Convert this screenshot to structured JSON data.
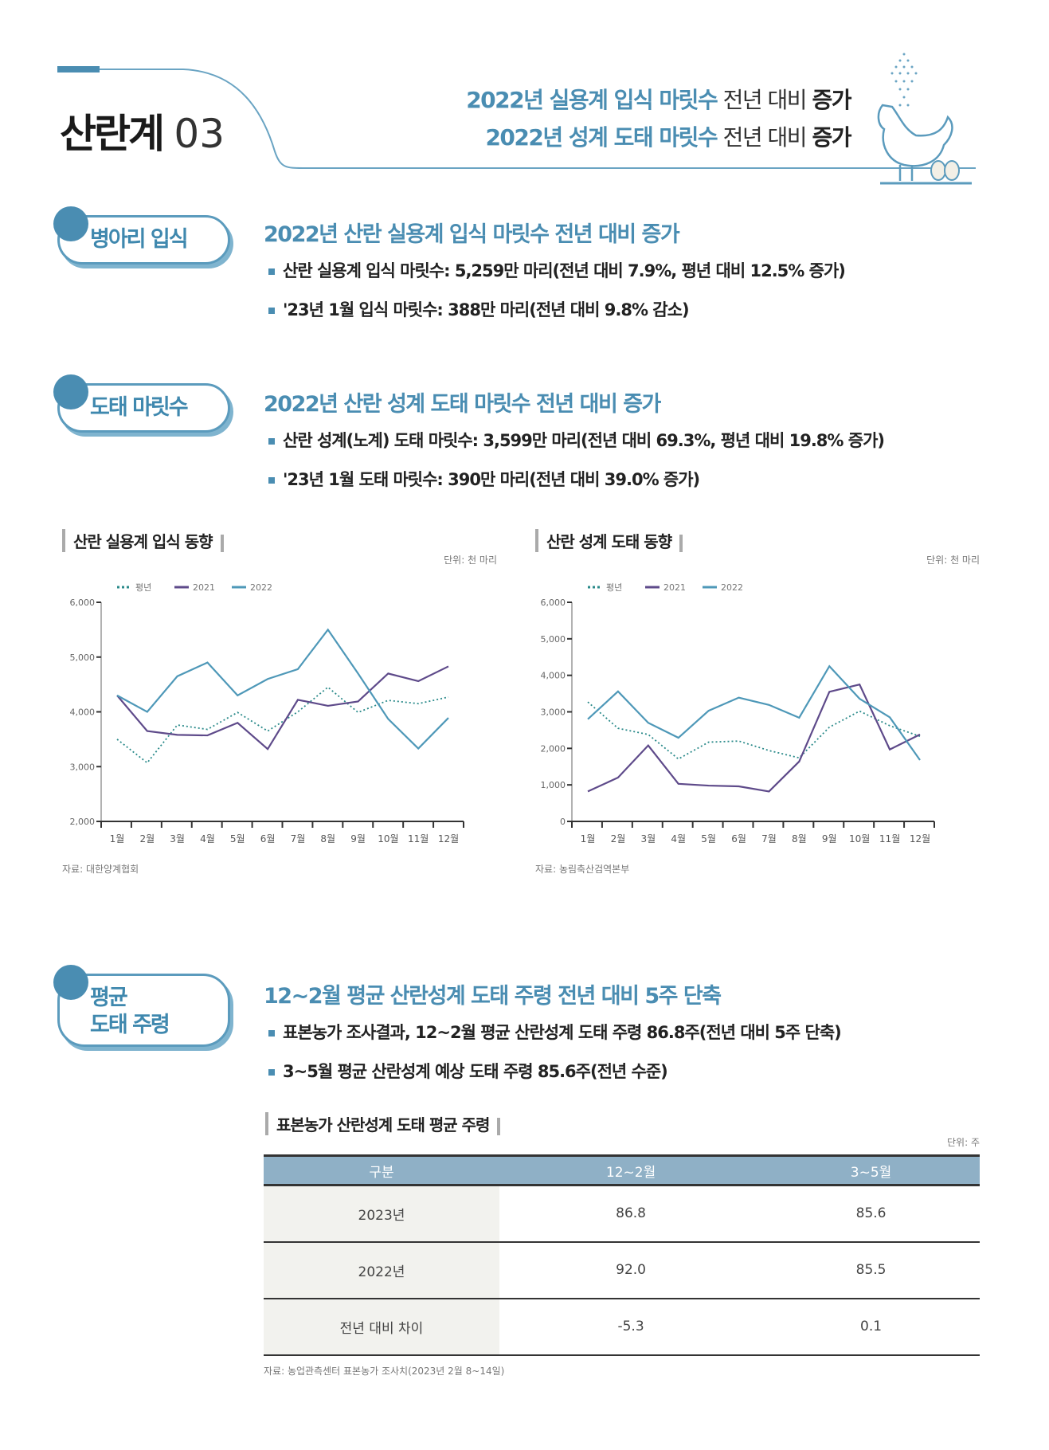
{
  "header": {
    "title": "산란계",
    "title_num": "03",
    "headline1": {
      "blue": "2022년 실용계 입식 마릿수",
      "plain": "전년 대비",
      "bold": "증가"
    },
    "headline2": {
      "blue": "2022년 성계 도태 마릿수",
      "plain": "전년 대비",
      "bold": "증가"
    },
    "icon": "chicken-with-eggs-icon"
  },
  "sections": [
    {
      "badge": "병아리 입식",
      "heading": "2022년 산란 실용계 입식 마릿수 전년 대비 증가",
      "bullets": [
        "산란 실용계 입식 마릿수: 5,259만 마리(전년 대비 7.9%, 평년 대비 12.5% 증가)",
        "'23년 1월 입식 마릿수: 388만 마리(전년 대비 9.8% 감소)"
      ]
    },
    {
      "badge": "도태 마릿수",
      "heading": "2022년 산란 성계 도태 마릿수 전년 대비 증가",
      "bullets": [
        "산란 성계(노계) 도태 마릿수: 3,599만 마리(전년 대비 69.3%, 평년 대비 19.8% 증가)",
        "'23년 1월 도태 마릿수: 390만 마리(전년 대비 39.0% 증가)"
      ]
    },
    {
      "badge_line1": "평균",
      "badge_line2": "도태 주령",
      "heading": "12~2월 평균 산란성계 도태 주령 전년 대비 5주 단축",
      "bullets": [
        "표본농가 조사결과, 12~2월 평균 산란성계 도태 주령 86.8주(전년 대비 5주 단축)",
        "3~5월 평균 산란성계 예상 도태 주령 85.6주(전년 수준)"
      ]
    }
  ],
  "colors": {
    "accent": "#4a8db2",
    "avg": "#2a8a8a",
    "y2021": "#5e4a8a",
    "y2022": "#4e98b8"
  },
  "chart_data": [
    {
      "type": "line",
      "title": "산란 실용계 입식 동향",
      "unit": "단위: 천 마리",
      "source": "자료: 대한양계협회",
      "categories": [
        "1월",
        "2월",
        "3월",
        "4월",
        "5월",
        "6월",
        "7월",
        "8월",
        "9월",
        "10월",
        "11월",
        "12월"
      ],
      "ylim": [
        2000,
        6000
      ],
      "yticks": [
        "2,000",
        "3,000",
        "4,000",
        "5,000",
        "6,000"
      ],
      "legend": "top-left",
      "series": [
        {
          "name": "평년",
          "style": "dotted",
          "values": [
            3500,
            3070,
            3760,
            3680,
            3990,
            3650,
            4000,
            4450,
            3990,
            4210,
            4150,
            4270
          ]
        },
        {
          "name": "2021",
          "style": "solid",
          "values": [
            4300,
            3650,
            3580,
            3570,
            3800,
            3320,
            4220,
            4110,
            4190,
            4700,
            4560,
            4830
          ]
        },
        {
          "name": "2022",
          "style": "solid",
          "values": [
            4300,
            4000,
            4650,
            4900,
            4300,
            4600,
            4780,
            5500,
            4700,
            3870,
            3330,
            3890
          ]
        }
      ]
    },
    {
      "type": "line",
      "title": "산란 성계 도태 동향",
      "unit": "단위: 천 마리",
      "source": "자료: 농림축산검역본부",
      "categories": [
        "1월",
        "2월",
        "3월",
        "4월",
        "5월",
        "6월",
        "7월",
        "8월",
        "9월",
        "10월",
        "11월",
        "12월"
      ],
      "ylim": [
        0,
        6000
      ],
      "yticks": [
        "0",
        "1,000",
        "2,000",
        "3,000",
        "4,000",
        "5,000",
        "6,000"
      ],
      "legend": "top-left",
      "series": [
        {
          "name": "평년",
          "style": "dotted",
          "values": [
            3270,
            2550,
            2380,
            1710,
            2170,
            2200,
            1940,
            1740,
            2580,
            3020,
            2620,
            2330
          ]
        },
        {
          "name": "2021",
          "style": "solid",
          "values": [
            820,
            1200,
            2080,
            1030,
            980,
            960,
            820,
            1640,
            3550,
            3750,
            1970,
            2380
          ]
        },
        {
          "name": "2022",
          "style": "solid",
          "values": [
            2800,
            3560,
            2700,
            2290,
            3030,
            3390,
            3190,
            2840,
            4250,
            3360,
            2850,
            1680
          ]
        }
      ]
    }
  ],
  "table": {
    "title": "표본농가 산란성계 도태 평균 주령",
    "unit": "단위: 주",
    "headers": [
      "구분",
      "12~2월",
      "3~5월"
    ],
    "rows": [
      [
        "2023년",
        "86.8",
        "85.6"
      ],
      [
        "2022년",
        "92.0",
        "85.5"
      ],
      [
        "전년 대비 차이",
        "-5.3",
        "0.1"
      ]
    ],
    "source": "자료: 농업관측센터 표본농가 조사치(2023년 2월 8~14일)"
  }
}
